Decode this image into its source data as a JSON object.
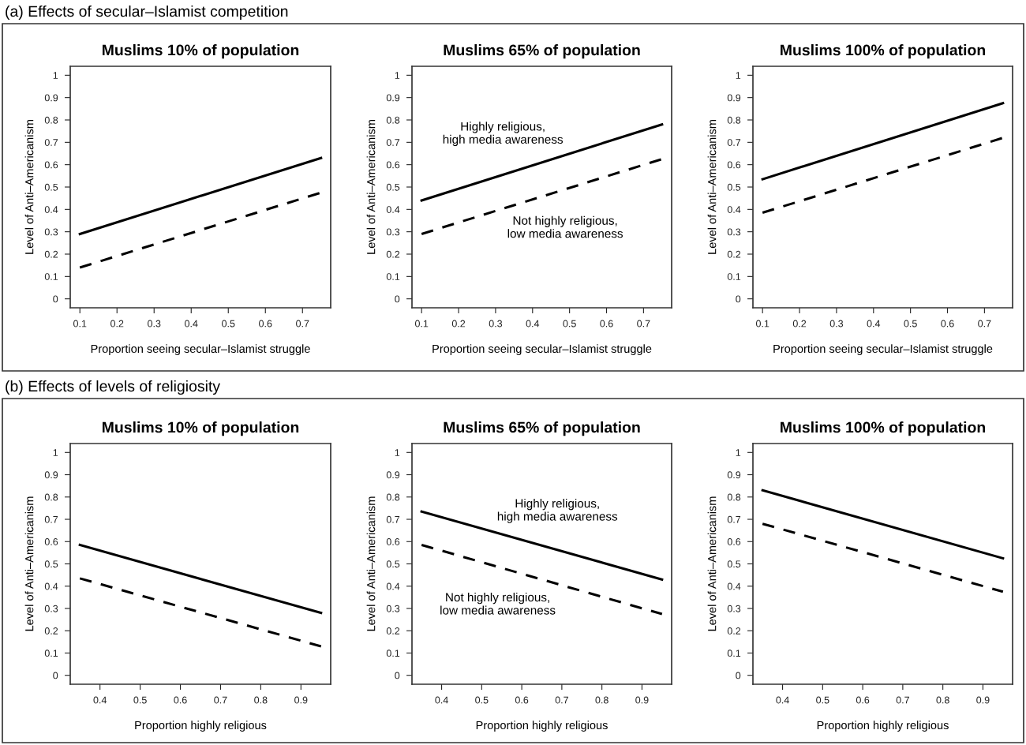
{
  "chart_data": [
    {
      "type": "line",
      "title": "Muslims 10% of population",
      "xlabel": "Proportion seeing secular–Islamist struggle",
      "ylabel": "Level of Anti–Americanism",
      "subtitle": "(a) Effects of secular–Islamist competition",
      "x": [
        0.1,
        0.75
      ],
      "xlim": [
        0.074,
        0.776
      ],
      "ylim": [
        -0.04,
        1.04
      ],
      "xticks": [
        0.1,
        0.2,
        0.3,
        0.4,
        0.5,
        0.6,
        0.7
      ],
      "yticks": [
        0,
        0.1,
        0.2,
        0.3,
        0.4,
        0.5,
        0.6,
        0.7,
        0.8,
        0.9,
        1
      ],
      "grid": false,
      "marker": "none",
      "series": [
        {
          "color": "#000000",
          "line_style": "solid",
          "values": [
            0.29,
            0.63
          ]
        },
        {
          "color": "#000000",
          "line_style": "dashed",
          "values": [
            0.14,
            0.475
          ]
        }
      ]
    },
    {
      "type": "line",
      "title": "Muslims 65% of population",
      "xlabel": "Proportion seeing secular–Islamist struggle",
      "ylabel": "Level of Anti–Americanism",
      "annotations": [
        "Highly religious,\nhigh media awareness",
        "Not highly religious,\nlow media awareness"
      ],
      "x": [
        0.1,
        0.75
      ],
      "xlim": [
        0.074,
        0.776
      ],
      "ylim": [
        -0.04,
        1.04
      ],
      "xticks": [
        0.1,
        0.2,
        0.3,
        0.4,
        0.5,
        0.6,
        0.7
      ],
      "yticks": [
        0,
        0.1,
        0.2,
        0.3,
        0.4,
        0.5,
        0.6,
        0.7,
        0.8,
        0.9,
        1
      ],
      "grid": false,
      "marker": "none",
      "series": [
        {
          "color": "#000000",
          "line_style": "solid",
          "values": [
            0.44,
            0.78
          ]
        },
        {
          "color": "#000000",
          "line_style": "dashed",
          "values": [
            0.29,
            0.625
          ]
        }
      ]
    },
    {
      "type": "line",
      "title": "Muslims 100% of population",
      "xlabel": "Proportion seeing secular–Islamist struggle",
      "ylabel": "Level of Anti–Americanism",
      "x": [
        0.1,
        0.75
      ],
      "xlim": [
        0.074,
        0.776
      ],
      "ylim": [
        -0.04,
        1.04
      ],
      "xticks": [
        0.1,
        0.2,
        0.3,
        0.4,
        0.5,
        0.6,
        0.7
      ],
      "yticks": [
        0,
        0.1,
        0.2,
        0.3,
        0.4,
        0.5,
        0.6,
        0.7,
        0.8,
        0.9,
        1
      ],
      "grid": false,
      "marker": "none",
      "series": [
        {
          "color": "#000000",
          "line_style": "solid",
          "values": [
            0.535,
            0.875
          ]
        },
        {
          "color": "#000000",
          "line_style": "dashed",
          "values": [
            0.385,
            0.72
          ]
        }
      ]
    },
    {
      "type": "line",
      "title": "Muslims 10% of population",
      "xlabel": "Proportion highly religious",
      "ylabel": "Level of Anti–Americanism",
      "subtitle": "(b) Effects of levels of religiosity",
      "x": [
        0.35,
        0.95
      ],
      "xlim": [
        0.326,
        0.974
      ],
      "ylim": [
        -0.04,
        1.04
      ],
      "xticks": [
        0.4,
        0.5,
        0.6,
        0.7,
        0.8,
        0.9
      ],
      "yticks": [
        0,
        0.1,
        0.2,
        0.3,
        0.4,
        0.5,
        0.6,
        0.7,
        0.8,
        0.9,
        1
      ],
      "grid": false,
      "marker": "none",
      "series": [
        {
          "color": "#000000",
          "line_style": "solid",
          "values": [
            0.585,
            0.28
          ]
        },
        {
          "color": "#000000",
          "line_style": "dashed",
          "values": [
            0.435,
            0.13
          ]
        }
      ]
    },
    {
      "type": "line",
      "title": "Muslims 65% of population",
      "xlabel": "Proportion highly religious",
      "ylabel": "Level of Anti–Americanism",
      "annotations": [
        "Highly religious,\nhigh media awareness",
        "Not highly religious,\nlow media awareness"
      ],
      "x": [
        0.35,
        0.95
      ],
      "xlim": [
        0.326,
        0.974
      ],
      "ylim": [
        -0.04,
        1.04
      ],
      "xticks": [
        0.4,
        0.5,
        0.6,
        0.7,
        0.8,
        0.9
      ],
      "yticks": [
        0,
        0.1,
        0.2,
        0.3,
        0.4,
        0.5,
        0.6,
        0.7,
        0.8,
        0.9,
        1
      ],
      "grid": false,
      "marker": "none",
      "series": [
        {
          "color": "#000000",
          "line_style": "solid",
          "values": [
            0.735,
            0.43
          ]
        },
        {
          "color": "#000000",
          "line_style": "dashed",
          "values": [
            0.585,
            0.275
          ]
        }
      ]
    },
    {
      "type": "line",
      "title": "Muslims 100% of population",
      "xlabel": "Proportion highly religious",
      "ylabel": "Level of Anti–Americanism",
      "x": [
        0.35,
        0.95
      ],
      "xlim": [
        0.326,
        0.974
      ],
      "ylim": [
        -0.04,
        1.04
      ],
      "xticks": [
        0.4,
        0.5,
        0.6,
        0.7,
        0.8,
        0.9
      ],
      "yticks": [
        0,
        0.1,
        0.2,
        0.3,
        0.4,
        0.5,
        0.6,
        0.7,
        0.8,
        0.9,
        1
      ],
      "grid": false,
      "marker": "none",
      "series": [
        {
          "color": "#000000",
          "line_style": "solid",
          "values": [
            0.83,
            0.525
          ]
        },
        {
          "color": "#000000",
          "line_style": "dashed",
          "values": [
            0.68,
            0.375
          ]
        }
      ]
    }
  ]
}
